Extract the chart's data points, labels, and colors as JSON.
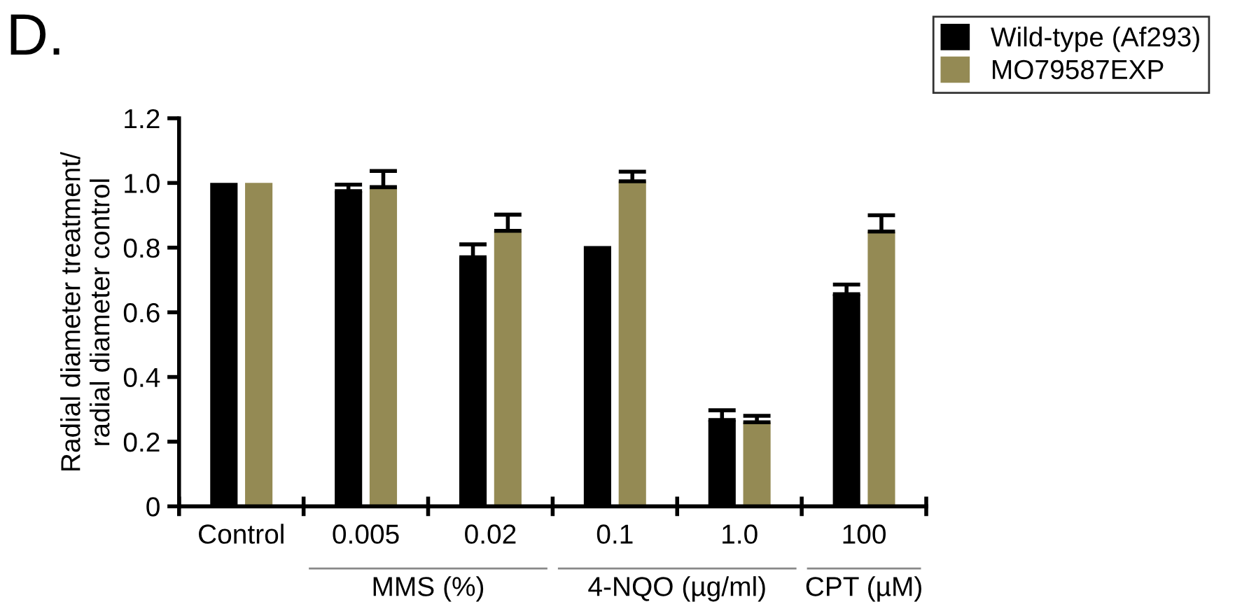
{
  "chart_data": {
    "type": "bar",
    "ylabel": "Radial diameter treatment/\nradial diameter control",
    "categories": [
      "Control",
      "0.005",
      "0.02",
      "0.1",
      "1.0",
      "100"
    ],
    "series": [
      {
        "name": "Wild-type (Af293)",
        "color": "#000000",
        "values": [
          1.0,
          0.975,
          0.77,
          0.805,
          0.267,
          0.656
        ],
        "errors": [
          null,
          0.02,
          0.04,
          null,
          0.03,
          0.03
        ]
      },
      {
        "name": "MO79587EXP",
        "color": "#948a54",
        "values": [
          1.0,
          0.987,
          0.852,
          1.005,
          0.26,
          0.85
        ],
        "errors": [
          null,
          0.05,
          0.05,
          0.03,
          0.02,
          0.05
        ]
      }
    ],
    "ylim": [
      0,
      1.2
    ],
    "yticks": [
      0,
      {
        "value": 0.2,
        "label": "0.2"
      },
      {
        "value": 0.4,
        "label": "0.4"
      },
      {
        "value": 0.6,
        "label": "0.6"
      },
      {
        "value": 0.8,
        "label": "0.8"
      },
      {
        "value": 1.0,
        "label": "1.0"
      },
      {
        "value": 1.2,
        "label": "1.2"
      }
    ],
    "grid": false,
    "legend": "top right",
    "annotations": [
      "D.",
      "MMS (%)",
      "4-NQO (µg/ml)",
      "CPT (µM)"
    ]
  }
}
